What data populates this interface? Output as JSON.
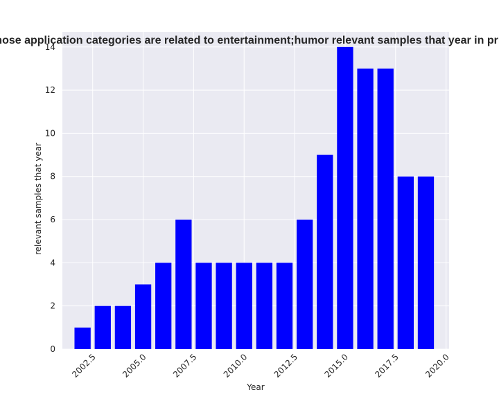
{
  "chart_data": {
    "type": "bar",
    "title": "Number of apps whose application categories are related to entertainment;humor relevant samples that year in privacy policies by year",
    "xlabel": "Year",
    "ylabel": "relevant samples that year",
    "x": [
      2002,
      2003,
      2004,
      2005,
      2006,
      2007,
      2008,
      2009,
      2010,
      2011,
      2012,
      2013,
      2014,
      2015,
      2016,
      2017,
      2018,
      2019
    ],
    "values": [
      1,
      2,
      2,
      3,
      4,
      6,
      4,
      4,
      4,
      4,
      4,
      6,
      9,
      14,
      13,
      13,
      8,
      8
    ],
    "xlim": [
      2001.0,
      2020.15
    ],
    "ylim": [
      0,
      14.7
    ],
    "xticks": [
      2002.5,
      2005.0,
      2007.5,
      2010.0,
      2012.5,
      2015.0,
      2017.5,
      2020.0
    ],
    "xtick_labels": [
      "2002.5",
      "2005.0",
      "2007.5",
      "2010.0",
      "2012.5",
      "2015.0",
      "2017.5",
      "2020.0"
    ],
    "yticks": [
      0,
      2,
      4,
      6,
      8,
      10,
      12,
      14
    ],
    "ytick_labels": [
      "0",
      "2",
      "4",
      "6",
      "8",
      "10",
      "12",
      "14"
    ],
    "grid": true,
    "colors": {
      "bar": "#0000ff",
      "plot_background": "#eaeaf2",
      "grid": "#ffffff"
    }
  }
}
